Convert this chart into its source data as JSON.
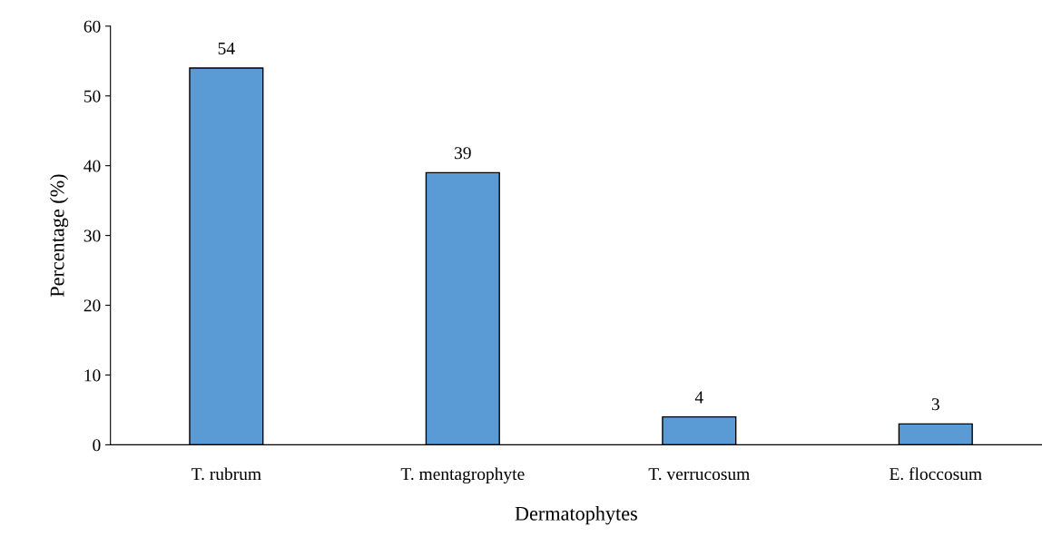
{
  "chart_data": {
    "type": "bar",
    "xlabel": "Dermatophytes",
    "ylabel": "Percentage (%)",
    "categories": [
      "T. rubrum",
      "T. mentagrophyte",
      "T. verrucosum",
      "E. floccosum"
    ],
    "values": [
      54,
      39,
      4,
      3
    ],
    "color": "#5b9bd5",
    "ylim": [
      0,
      60
    ],
    "yticks": [
      0,
      10,
      20,
      30,
      40,
      50,
      60
    ],
    "data_labels": true,
    "grid": false,
    "legend": false
  }
}
